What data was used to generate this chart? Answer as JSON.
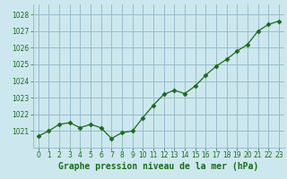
{
  "x": [
    0,
    1,
    2,
    3,
    4,
    5,
    6,
    7,
    8,
    9,
    10,
    11,
    12,
    13,
    14,
    15,
    16,
    17,
    18,
    19,
    20,
    21,
    22,
    23
  ],
  "y": [
    1020.7,
    1021.0,
    1021.4,
    1021.5,
    1021.2,
    1021.4,
    1021.2,
    1020.55,
    1020.9,
    1021.0,
    1021.8,
    1022.55,
    1023.2,
    1023.45,
    1023.25,
    1023.7,
    1024.35,
    1024.9,
    1025.3,
    1025.8,
    1026.2,
    1027.0,
    1027.4,
    1027.6
  ],
  "line_color": "#1a6b1a",
  "marker": "D",
  "marker_size": 2.5,
  "bg_color": "#cce8ee",
  "grid_color": "#99bbcc",
  "title": "Graphe pression niveau de la mer (hPa)",
  "title_color": "#1a6b1a",
  "xlim": [
    -0.5,
    23.5
  ],
  "ylim": [
    1020.0,
    1028.6
  ],
  "yticks": [
    1021,
    1022,
    1023,
    1024,
    1025,
    1026,
    1027,
    1028
  ],
  "xticks": [
    0,
    1,
    2,
    3,
    4,
    5,
    6,
    7,
    8,
    9,
    10,
    11,
    12,
    13,
    14,
    15,
    16,
    17,
    18,
    19,
    20,
    21,
    22,
    23
  ],
  "tick_color": "#1a6b1a",
  "tick_fontsize": 5.5,
  "title_fontsize": 7.0
}
